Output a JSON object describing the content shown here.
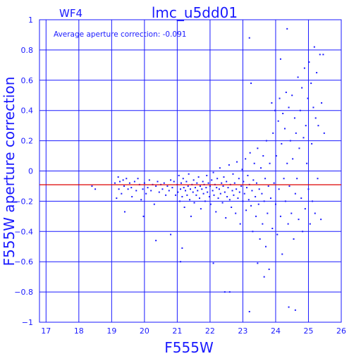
{
  "colors": {
    "axes": "#1a1aff",
    "points": "#1a1aff",
    "mean_line": "#dd0000",
    "background": "#ffffff"
  },
  "chart_data": {
    "type": "scatter",
    "chip_label": "WF4",
    "title": "lmc_u5dd01",
    "annotation": "Average aperture correction: -0.091",
    "xlabel": "F555W",
    "ylabel": "F555W aperture correction",
    "xlim": [
      16.8,
      26
    ],
    "ylim": [
      -1,
      1
    ],
    "grid": true,
    "x_ticks": [
      "17",
      "18",
      "19",
      "20",
      "21",
      "22",
      "23",
      "24",
      "25",
      "26"
    ],
    "y_ticks": [
      "−1",
      "−0.8",
      "−0.6",
      "−0.4",
      "−0.2",
      "0",
      "0.2",
      "0.4",
      "0.6",
      "0.8",
      "1"
    ],
    "average_line": -0.091,
    "points": [
      [
        18.4,
        -0.1
      ],
      [
        18.5,
        -0.12
      ],
      [
        19.1,
        -0.08
      ],
      [
        19.15,
        -0.18
      ],
      [
        19.2,
        -0.04
      ],
      [
        19.22,
        -0.12
      ],
      [
        19.25,
        -0.07
      ],
      [
        19.3,
        -0.15
      ],
      [
        19.35,
        -0.06
      ],
      [
        19.38,
        -0.1
      ],
      [
        19.4,
        -0.27
      ],
      [
        19.45,
        -0.05
      ],
      [
        19.5,
        -0.12
      ],
      [
        19.55,
        -0.08
      ],
      [
        19.6,
        -0.11
      ],
      [
        19.62,
        -0.17
      ],
      [
        19.7,
        -0.07
      ],
      [
        19.75,
        -0.13
      ],
      [
        19.8,
        -0.05
      ],
      [
        19.85,
        -0.09
      ],
      [
        19.9,
        -0.19
      ],
      [
        19.95,
        -0.12
      ],
      [
        19.97,
        -0.3
      ],
      [
        20.0,
        -0.08
      ],
      [
        20.05,
        -0.15
      ],
      [
        20.1,
        -0.11
      ],
      [
        20.15,
        -0.06
      ],
      [
        20.2,
        -0.13
      ],
      [
        20.25,
        -0.09
      ],
      [
        20.3,
        -0.22
      ],
      [
        20.35,
        -0.1
      ],
      [
        20.4,
        -0.07
      ],
      [
        20.45,
        -0.14
      ],
      [
        20.5,
        -0.09
      ],
      [
        20.55,
        -0.12
      ],
      [
        20.6,
        -0.08
      ],
      [
        20.65,
        -0.16
      ],
      [
        20.7,
        -0.1
      ],
      [
        20.75,
        -0.13
      ],
      [
        20.8,
        -0.06
      ],
      [
        20.85,
        -0.11
      ],
      [
        20.9,
        -0.07
      ],
      [
        20.95,
        -0.16
      ],
      [
        20.35,
        -0.46
      ],
      [
        20.8,
        -0.42
      ],
      [
        21.0,
        -0.09
      ],
      [
        21.02,
        -0.14
      ],
      [
        21.05,
        -0.03
      ],
      [
        21.08,
        -0.2
      ],
      [
        21.1,
        -0.12
      ],
      [
        21.12,
        -0.08
      ],
      [
        21.15,
        -0.17
      ],
      [
        21.18,
        -0.05
      ],
      [
        21.2,
        -0.11
      ],
      [
        21.22,
        -0.24
      ],
      [
        21.25,
        -0.13
      ],
      [
        21.28,
        -0.07
      ],
      [
        21.3,
        -0.16
      ],
      [
        21.33,
        -0.1
      ],
      [
        21.35,
        -0.02
      ],
      [
        21.38,
        -0.19
      ],
      [
        21.4,
        -0.12
      ],
      [
        21.42,
        -0.3
      ],
      [
        21.45,
        -0.09
      ],
      [
        21.48,
        -0.14
      ],
      [
        21.5,
        -0.06
      ],
      [
        21.52,
        -0.21
      ],
      [
        21.55,
        -0.11
      ],
      [
        21.58,
        -0.16
      ],
      [
        21.6,
        -0.08
      ],
      [
        21.62,
        -0.13
      ],
      [
        21.65,
        -0.04
      ],
      [
        21.68,
        -0.18
      ],
      [
        21.7,
        -0.1
      ],
      [
        21.72,
        -0.25
      ],
      [
        21.75,
        -0.12
      ],
      [
        21.78,
        -0.07
      ],
      [
        21.8,
        -0.15
      ],
      [
        21.82,
        -0.09
      ],
      [
        21.85,
        -0.2
      ],
      [
        21.88,
        -0.11
      ],
      [
        21.9,
        -0.03
      ],
      [
        21.92,
        -0.14
      ],
      [
        21.95,
        -0.08
      ],
      [
        21.98,
        -0.17
      ],
      [
        22.0,
        -0.1
      ],
      [
        22.02,
        -0.22
      ],
      [
        22.05,
        -0.06
      ],
      [
        22.08,
        -0.13
      ],
      [
        22.1,
        -0.01
      ],
      [
        22.12,
        -0.16
      ],
      [
        22.15,
        -0.09
      ],
      [
        22.18,
        -0.27
      ],
      [
        22.2,
        -0.11
      ],
      [
        22.22,
        -0.05
      ],
      [
        22.25,
        -0.18
      ],
      [
        22.28,
        -0.12
      ],
      [
        22.3,
        0.02
      ],
      [
        22.32,
        -0.15
      ],
      [
        22.35,
        -0.08
      ],
      [
        22.38,
        -0.21
      ],
      [
        22.4,
        -0.1
      ],
      [
        22.42,
        -0.04
      ],
      [
        22.45,
        -0.14
      ],
      [
        22.48,
        -0.31
      ],
      [
        22.5,
        -0.07
      ],
      [
        22.52,
        -0.17
      ],
      [
        22.55,
        -0.11
      ],
      [
        22.58,
        0.04
      ],
      [
        22.6,
        -0.19
      ],
      [
        22.62,
        -0.09
      ],
      [
        22.65,
        -0.24
      ],
      [
        22.68,
        -0.13
      ],
      [
        22.7,
        -0.02
      ],
      [
        22.72,
        -0.16
      ],
      [
        22.75,
        -0.08
      ],
      [
        22.78,
        -0.28
      ],
      [
        22.8,
        -0.12
      ],
      [
        22.82,
        0.06
      ],
      [
        22.85,
        -0.18
      ],
      [
        22.88,
        -0.05
      ],
      [
        22.9,
        -0.14
      ],
      [
        22.92,
        -0.35
      ],
      [
        22.95,
        -0.1
      ],
      [
        22.98,
        0.01
      ],
      [
        23.0,
        -0.2
      ],
      [
        23.02,
        -0.07
      ],
      [
        23.05,
        -0.15
      ],
      [
        23.08,
        0.08
      ],
      [
        23.1,
        -0.26
      ],
      [
        23.12,
        -0.11
      ],
      [
        23.15,
        -0.03
      ],
      [
        23.18,
        -0.19
      ],
      [
        23.2,
        -0.09
      ],
      [
        23.22,
        0.12
      ],
      [
        23.25,
        -0.23
      ],
      [
        23.28,
        -0.13
      ],
      [
        23.3,
        -0.4
      ],
      [
        23.32,
        -0.06
      ],
      [
        23.35,
        0.05
      ],
      [
        23.38,
        -0.17
      ],
      [
        23.4,
        -0.3
      ],
      [
        23.42,
        -0.08
      ],
      [
        23.45,
        0.15
      ],
      [
        23.48,
        -0.22
      ],
      [
        23.5,
        -0.12
      ],
      [
        23.52,
        -0.45
      ],
      [
        23.55,
        0.02
      ],
      [
        23.58,
        -0.15
      ],
      [
        23.6,
        -0.35
      ],
      [
        23.62,
        0.1
      ],
      [
        23.65,
        -0.2
      ],
      [
        23.68,
        -0.05
      ],
      [
        23.7,
        -0.5
      ],
      [
        23.72,
        0.2
      ],
      [
        23.75,
        -0.28
      ],
      [
        23.78,
        -0.1
      ],
      [
        23.8,
        -0.65
      ],
      [
        23.82,
        0.05
      ],
      [
        23.85,
        -0.18
      ],
      [
        23.88,
        0.45
      ],
      [
        23.9,
        -0.38
      ],
      [
        23.92,
        0.25
      ],
      [
        23.95,
        -0.08
      ],
      [
        23.98,
        0.4
      ],
      [
        24.0,
        -0.22
      ],
      [
        24.02,
        0.1
      ],
      [
        24.05,
        -0.42
      ],
      [
        24.08,
        0.33
      ],
      [
        24.1,
        -0.12
      ],
      [
        24.12,
        0.48
      ],
      [
        24.15,
        -0.3
      ],
      [
        24.18,
        0.18
      ],
      [
        24.2,
        -0.55
      ],
      [
        24.22,
        0.38
      ],
      [
        24.25,
        -0.05
      ],
      [
        24.28,
        0.28
      ],
      [
        24.3,
        -0.2
      ],
      [
        24.32,
        0.52
      ],
      [
        24.35,
        0.05
      ],
      [
        24.38,
        -0.35
      ],
      [
        24.4,
        0.42
      ],
      [
        24.42,
        -0.1
      ],
      [
        24.45,
        0.2
      ],
      [
        24.48,
        -0.28
      ],
      [
        24.5,
        0.5
      ],
      [
        24.52,
        0.08
      ],
      [
        24.55,
        -0.45
      ],
      [
        24.58,
        0.35
      ],
      [
        24.6,
        -0.15
      ],
      [
        24.62,
        0.25
      ],
      [
        24.65,
        -0.05
      ],
      [
        24.68,
        0.62
      ],
      [
        24.7,
        -0.32
      ],
      [
        24.72,
        0.15
      ],
      [
        24.75,
        0.4
      ],
      [
        24.78,
        -0.18
      ],
      [
        24.8,
        0.55
      ],
      [
        24.82,
        -0.4
      ],
      [
        24.85,
        0.22
      ],
      [
        24.88,
        0.68
      ],
      [
        24.9,
        -0.25
      ],
      [
        24.92,
        0.3
      ],
      [
        24.95,
        0.05
      ],
      [
        24.98,
        0.48
      ],
      [
        25.0,
        -0.12
      ],
      [
        25.02,
        0.72
      ],
      [
        25.05,
        -0.35
      ],
      [
        25.08,
        0.58
      ],
      [
        25.1,
        0.18
      ],
      [
        25.12,
        -0.2
      ],
      [
        25.15,
        0.42
      ],
      [
        25.18,
        0.82
      ],
      [
        25.2,
        -0.28
      ],
      [
        25.22,
        0.35
      ],
      [
        25.25,
        0.65
      ],
      [
        25.28,
        -0.05
      ],
      [
        25.3,
        0.3
      ],
      [
        25.35,
        0.77
      ],
      [
        25.38,
        -0.32
      ],
      [
        25.4,
        0.45
      ],
      [
        25.45,
        0.77
      ],
      [
        25.48,
        0.25
      ],
      [
        24.35,
        0.94
      ],
      [
        23.2,
        0.88
      ],
      [
        23.25,
        0.58
      ],
      [
        24.15,
        0.74
      ],
      [
        24.4,
        -0.9
      ],
      [
        24.6,
        -0.92
      ],
      [
        23.2,
        -0.93
      ],
      [
        22.45,
        -0.8
      ],
      [
        22.6,
        -0.8
      ],
      [
        22.1,
        -0.61
      ],
      [
        21.1,
        -0.6
      ],
      [
        21.15,
        -0.51
      ],
      [
        23.45,
        -0.61
      ],
      [
        23.65,
        -0.7
      ]
    ]
  }
}
